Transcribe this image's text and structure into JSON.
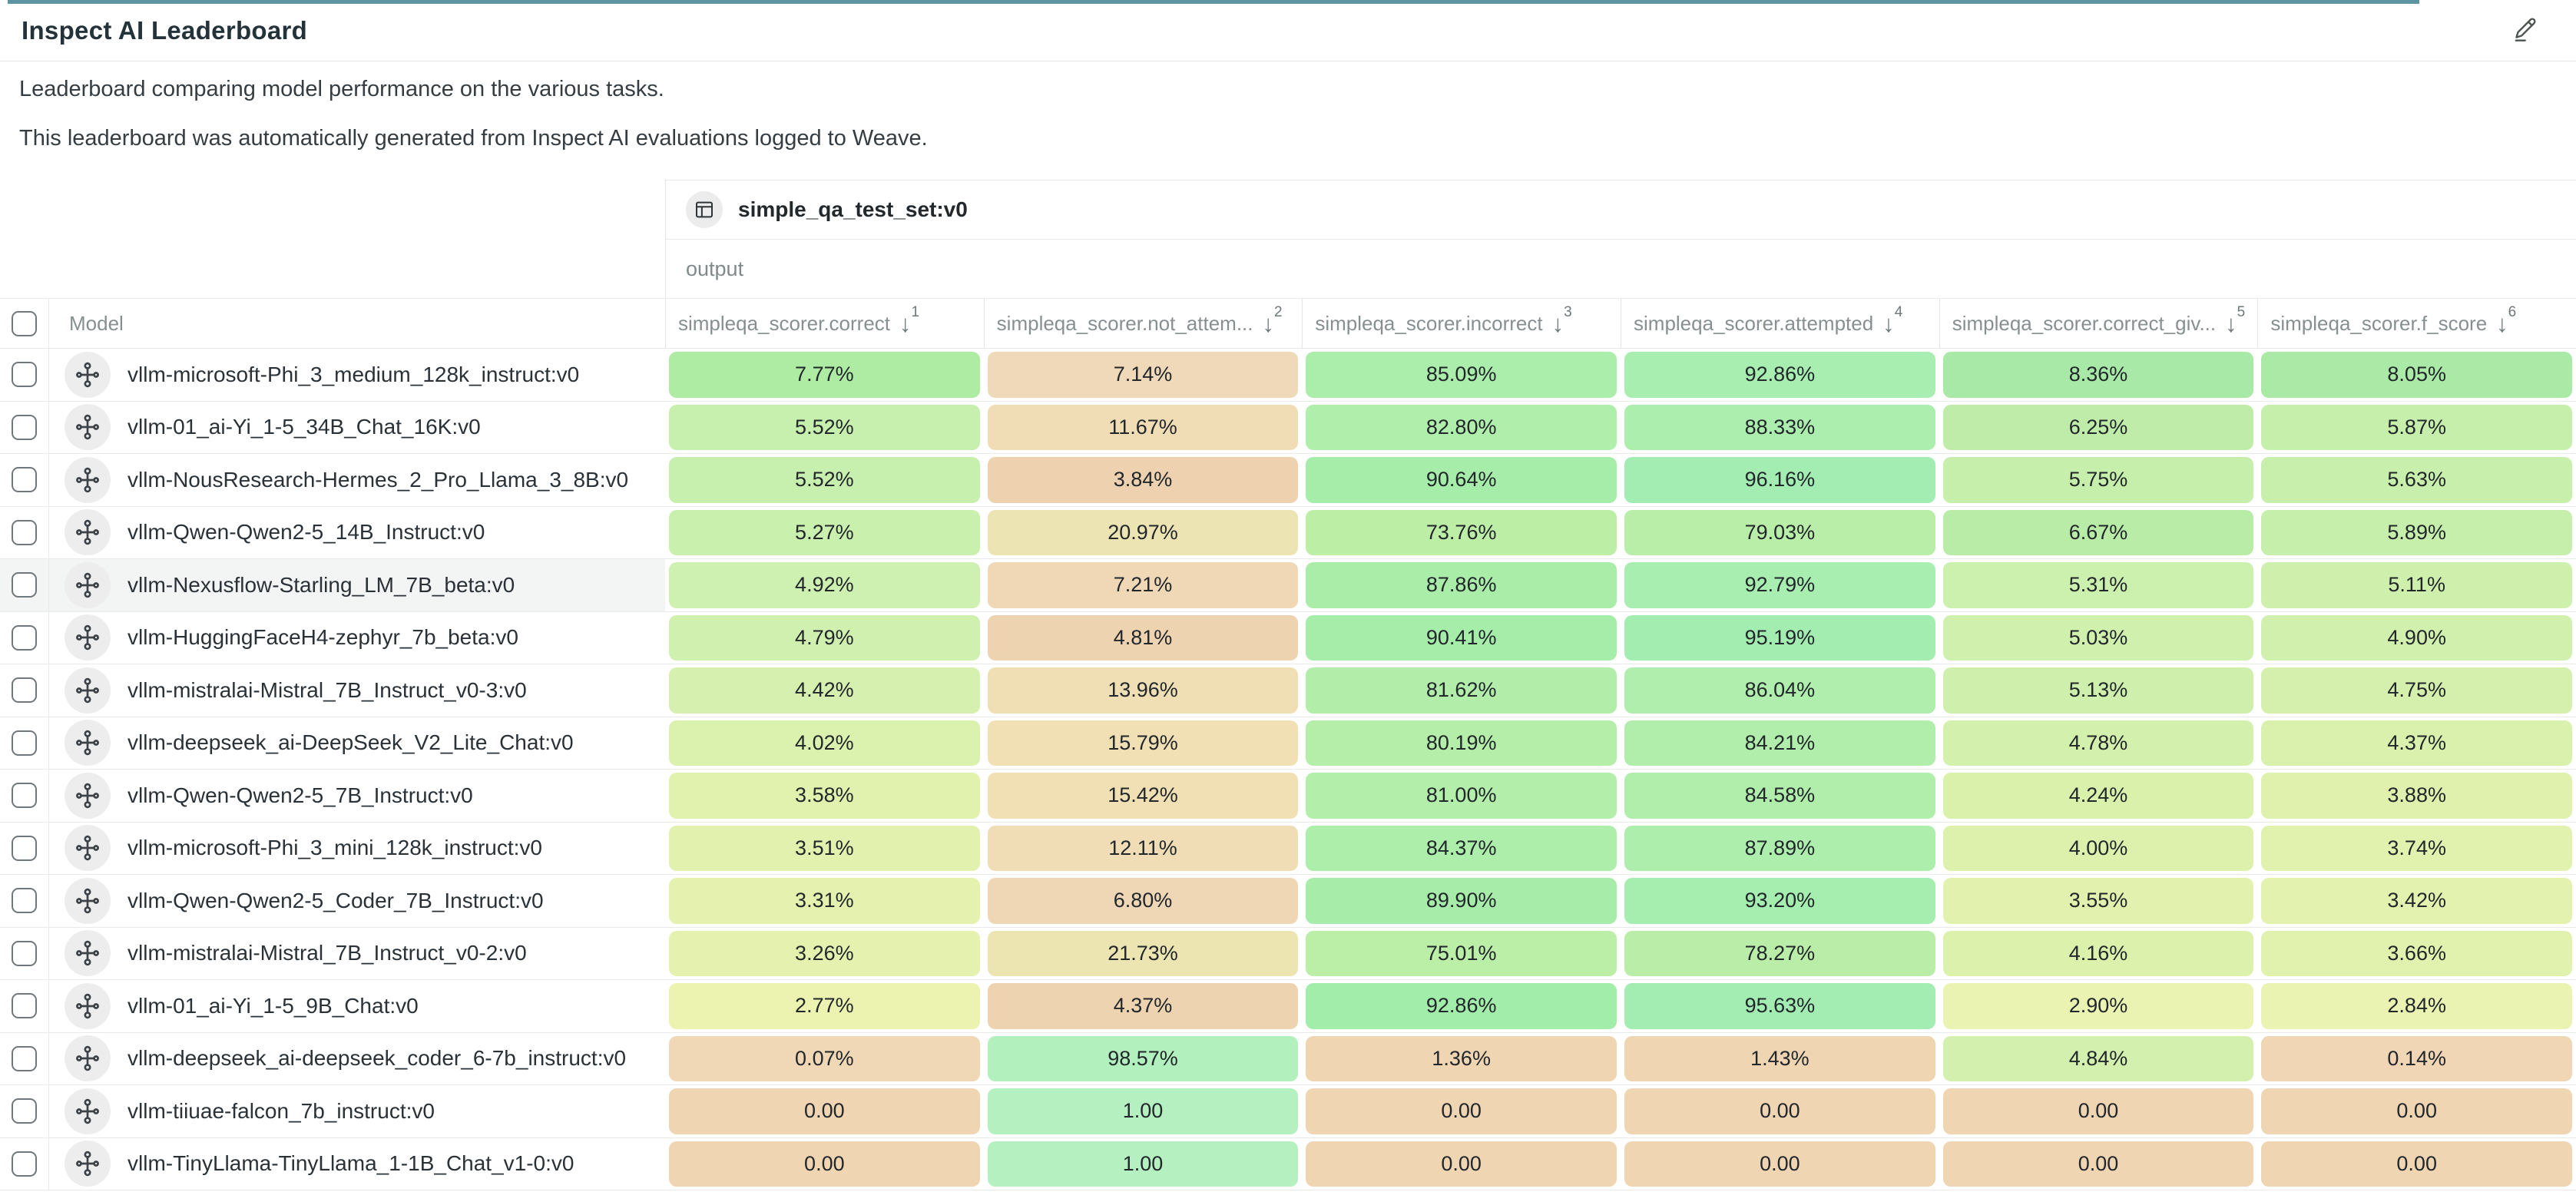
{
  "header": {
    "title": "Inspect AI Leaderboard"
  },
  "description": {
    "line1": "Leaderboard comparing model performance on the various tasks.",
    "line2": "This leaderboard was automatically generated from Inspect AI evaluations logged to Weave."
  },
  "colors": {
    "accent_bar": "#5d96a2",
    "row_hover": "#f3f4f4"
  },
  "table": {
    "group_header": {
      "dataset_label": "simple_qa_test_set:v0",
      "output_label": "output"
    },
    "model_column_label": "Model",
    "sort_icon": "↓",
    "columns": [
      {
        "label": "simpleqa_scorer.correct",
        "sort_order": "1"
      },
      {
        "label": "simpleqa_scorer.not_attem...",
        "sort_order": "2"
      },
      {
        "label": "simpleqa_scorer.incorrect",
        "sort_order": "3"
      },
      {
        "label": "simpleqa_scorer.attempted",
        "sort_order": "4"
      },
      {
        "label": "simpleqa_scorer.correct_giv...",
        "sort_order": "5"
      },
      {
        "label": "simpleqa_scorer.f_score",
        "sort_order": "6"
      }
    ],
    "rows": [
      {
        "model": "vllm-microsoft-Phi_3_medium_128k_instruct:v0",
        "highlighted": false,
        "cells": [
          {
            "v": "7.77%",
            "c": "#aeeba3"
          },
          {
            "v": "7.14%",
            "c": "#f0d9b8"
          },
          {
            "v": "85.09%",
            "c": "#abeeab"
          },
          {
            "v": "92.86%",
            "c": "#a7eeb0"
          },
          {
            "v": "8.36%",
            "c": "#a9e9a7"
          },
          {
            "v": "8.05%",
            "c": "#abeaa6"
          }
        ]
      },
      {
        "model": "vllm-01_ai-Yi_1-5_34B_Chat_16K:v0",
        "highlighted": false,
        "cells": [
          {
            "v": "5.52%",
            "c": "#c7efad"
          },
          {
            "v": "11.67%",
            "c": "#f0ddb6"
          },
          {
            "v": "82.80%",
            "c": "#b0eeab"
          },
          {
            "v": "88.33%",
            "c": "#aceeae"
          },
          {
            "v": "6.25%",
            "c": "#bfeda9"
          },
          {
            "v": "5.87%",
            "c": "#c5efab"
          }
        ]
      },
      {
        "model": "vllm-NousResearch-Hermes_2_Pro_Llama_3_8B:v0",
        "highlighted": false,
        "cells": [
          {
            "v": "5.52%",
            "c": "#c7efad"
          },
          {
            "v": "3.84%",
            "c": "#eed2b0"
          },
          {
            "v": "90.64%",
            "c": "#a6eda9"
          },
          {
            "v": "96.16%",
            "c": "#a3edb2"
          },
          {
            "v": "5.75%",
            "c": "#c6efab"
          },
          {
            "v": "5.63%",
            "c": "#c8efab"
          }
        ]
      },
      {
        "model": "vllm-Qwen-Qwen2-5_14B_Instruct:v0",
        "highlighted": false,
        "cells": [
          {
            "v": "5.27%",
            "c": "#caf0ae"
          },
          {
            "v": "20.97%",
            "c": "#ece4b2"
          },
          {
            "v": "73.76%",
            "c": "#bdeea6"
          },
          {
            "v": "79.03%",
            "c": "#b9eea9"
          },
          {
            "v": "6.67%",
            "c": "#b9eca6"
          },
          {
            "v": "5.89%",
            "c": "#c5efab"
          }
        ]
      },
      {
        "model": "vllm-Nexusflow-Starling_LM_7B_beta:v0",
        "highlighted": true,
        "cells": [
          {
            "v": "4.92%",
            "c": "#cef0b0"
          },
          {
            "v": "7.21%",
            "c": "#f0d8b7"
          },
          {
            "v": "87.86%",
            "c": "#a9eda9"
          },
          {
            "v": "92.79%",
            "c": "#a7eeb0"
          },
          {
            "v": "5.31%",
            "c": "#ccf0ad"
          },
          {
            "v": "5.11%",
            "c": "#cff0ad"
          }
        ]
      },
      {
        "model": "vllm-HuggingFaceH4-zephyr_7b_beta:v0",
        "highlighted": false,
        "cells": [
          {
            "v": "4.79%",
            "c": "#d0f0b0"
          },
          {
            "v": "4.81%",
            "c": "#eed3b1"
          },
          {
            "v": "90.41%",
            "c": "#a6eda9"
          },
          {
            "v": "95.19%",
            "c": "#a4edb1"
          },
          {
            "v": "5.03%",
            "c": "#d0f0ae"
          },
          {
            "v": "4.90%",
            "c": "#d2f0ad"
          }
        ]
      },
      {
        "model": "vllm-mistralai-Mistral_7B_Instruct_v0-3:v0",
        "highlighted": false,
        "cells": [
          {
            "v": "4.42%",
            "c": "#d6f1af"
          },
          {
            "v": "13.96%",
            "c": "#f0dfb4"
          },
          {
            "v": "81.62%",
            "c": "#b2eeaa"
          },
          {
            "v": "86.04%",
            "c": "#afeeac"
          },
          {
            "v": "5.13%",
            "c": "#cff0ad"
          },
          {
            "v": "4.75%",
            "c": "#d5f0ac"
          }
        ]
      },
      {
        "model": "vllm-deepseek_ai-DeepSeek_V2_Lite_Chat:v0",
        "highlighted": false,
        "cells": [
          {
            "v": "4.02%",
            "c": "#dbf1ae"
          },
          {
            "v": "15.79%",
            "c": "#f0e0b3"
          },
          {
            "v": "80.19%",
            "c": "#b5eea9"
          },
          {
            "v": "84.21%",
            "c": "#b1eeab"
          },
          {
            "v": "4.78%",
            "c": "#d4f0ad"
          },
          {
            "v": "4.37%",
            "c": "#d9f1ac"
          }
        ]
      },
      {
        "model": "vllm-Qwen-Qwen2-5_7B_Instruct:v0",
        "highlighted": false,
        "cells": [
          {
            "v": "3.58%",
            "c": "#e1f2ae"
          },
          {
            "v": "15.42%",
            "c": "#f0e0b3"
          },
          {
            "v": "81.00%",
            "c": "#b3eeaa"
          },
          {
            "v": "84.58%",
            "c": "#b1eeab"
          },
          {
            "v": "4.24%",
            "c": "#daf1ac"
          },
          {
            "v": "3.88%",
            "c": "#dff1ad"
          }
        ]
      },
      {
        "model": "vllm-microsoft-Phi_3_mini_128k_instruct:v0",
        "highlighted": false,
        "cells": [
          {
            "v": "3.51%",
            "c": "#e2f2ae"
          },
          {
            "v": "12.11%",
            "c": "#f0ddb5"
          },
          {
            "v": "84.37%",
            "c": "#adeeab"
          },
          {
            "v": "87.89%",
            "c": "#adeead"
          },
          {
            "v": "4.00%",
            "c": "#ddf1ad"
          },
          {
            "v": "3.74%",
            "c": "#e0f2ae"
          }
        ]
      },
      {
        "model": "vllm-Qwen-Qwen2-5_Coder_7B_Instruct:v0",
        "highlighted": false,
        "cells": [
          {
            "v": "3.31%",
            "c": "#e5f2af"
          },
          {
            "v": "6.80%",
            "c": "#efd7b6"
          },
          {
            "v": "89.90%",
            "c": "#a7eda9"
          },
          {
            "v": "93.20%",
            "c": "#a6eeb0"
          },
          {
            "v": "3.55%",
            "c": "#e2f2ae"
          },
          {
            "v": "3.42%",
            "c": "#e4f2af"
          }
        ]
      },
      {
        "model": "vllm-mistralai-Mistral_7B_Instruct_v0-2:v0",
        "highlighted": false,
        "cells": [
          {
            "v": "3.26%",
            "c": "#e5f2af"
          },
          {
            "v": "21.73%",
            "c": "#ece5b1"
          },
          {
            "v": "75.01%",
            "c": "#bbeea7"
          },
          {
            "v": "78.27%",
            "c": "#baeea8"
          },
          {
            "v": "4.16%",
            "c": "#dbf1ac"
          },
          {
            "v": "3.66%",
            "c": "#e1f2ae"
          }
        ]
      },
      {
        "model": "vllm-01_ai-Yi_1-5_9B_Chat:v0",
        "highlighted": false,
        "cells": [
          {
            "v": "2.77%",
            "c": "#ecf3b1"
          },
          {
            "v": "4.37%",
            "c": "#eed3b0"
          },
          {
            "v": "92.86%",
            "c": "#a3edaa"
          },
          {
            "v": "95.63%",
            "c": "#a4edb2"
          },
          {
            "v": "2.90%",
            "c": "#eaf3b2"
          },
          {
            "v": "2.84%",
            "c": "#ebf3b2"
          }
        ]
      },
      {
        "model": "vllm-deepseek_ai-deepseek_coder_6-7b_instruct:v0",
        "highlighted": false,
        "cells": [
          {
            "v": "0.07%",
            "c": "#f0d7b5"
          },
          {
            "v": "98.57%",
            "c": "#b2f0bd"
          },
          {
            "v": "1.36%",
            "c": "#f0d5b3"
          },
          {
            "v": "1.43%",
            "c": "#f0d5b3"
          },
          {
            "v": "4.84%",
            "c": "#d3f0ae"
          },
          {
            "v": "0.14%",
            "c": "#f0d6b4"
          }
        ]
      },
      {
        "model": "vllm-tiiuae-falcon_7b_instruct:v0",
        "highlighted": false,
        "cells": [
          {
            "v": "0.00",
            "c": "#f0d5b3"
          },
          {
            "v": "1.00",
            "c": "#b4f0c0"
          },
          {
            "v": "0.00",
            "c": "#f0d5b3"
          },
          {
            "v": "0.00",
            "c": "#f0d5b3"
          },
          {
            "v": "0.00",
            "c": "#f0d5b3"
          },
          {
            "v": "0.00",
            "c": "#f0d5b3"
          }
        ]
      },
      {
        "model": "vllm-TinyLlama-TinyLlama_1-1B_Chat_v1-0:v0",
        "highlighted": false,
        "cells": [
          {
            "v": "0.00",
            "c": "#f0d5b3"
          },
          {
            "v": "1.00",
            "c": "#b4f0c0"
          },
          {
            "v": "0.00",
            "c": "#f0d5b3"
          },
          {
            "v": "0.00",
            "c": "#f0d5b3"
          },
          {
            "v": "0.00",
            "c": "#f0d5b3"
          },
          {
            "v": "0.00",
            "c": "#f0d5b3"
          }
        ]
      }
    ]
  }
}
